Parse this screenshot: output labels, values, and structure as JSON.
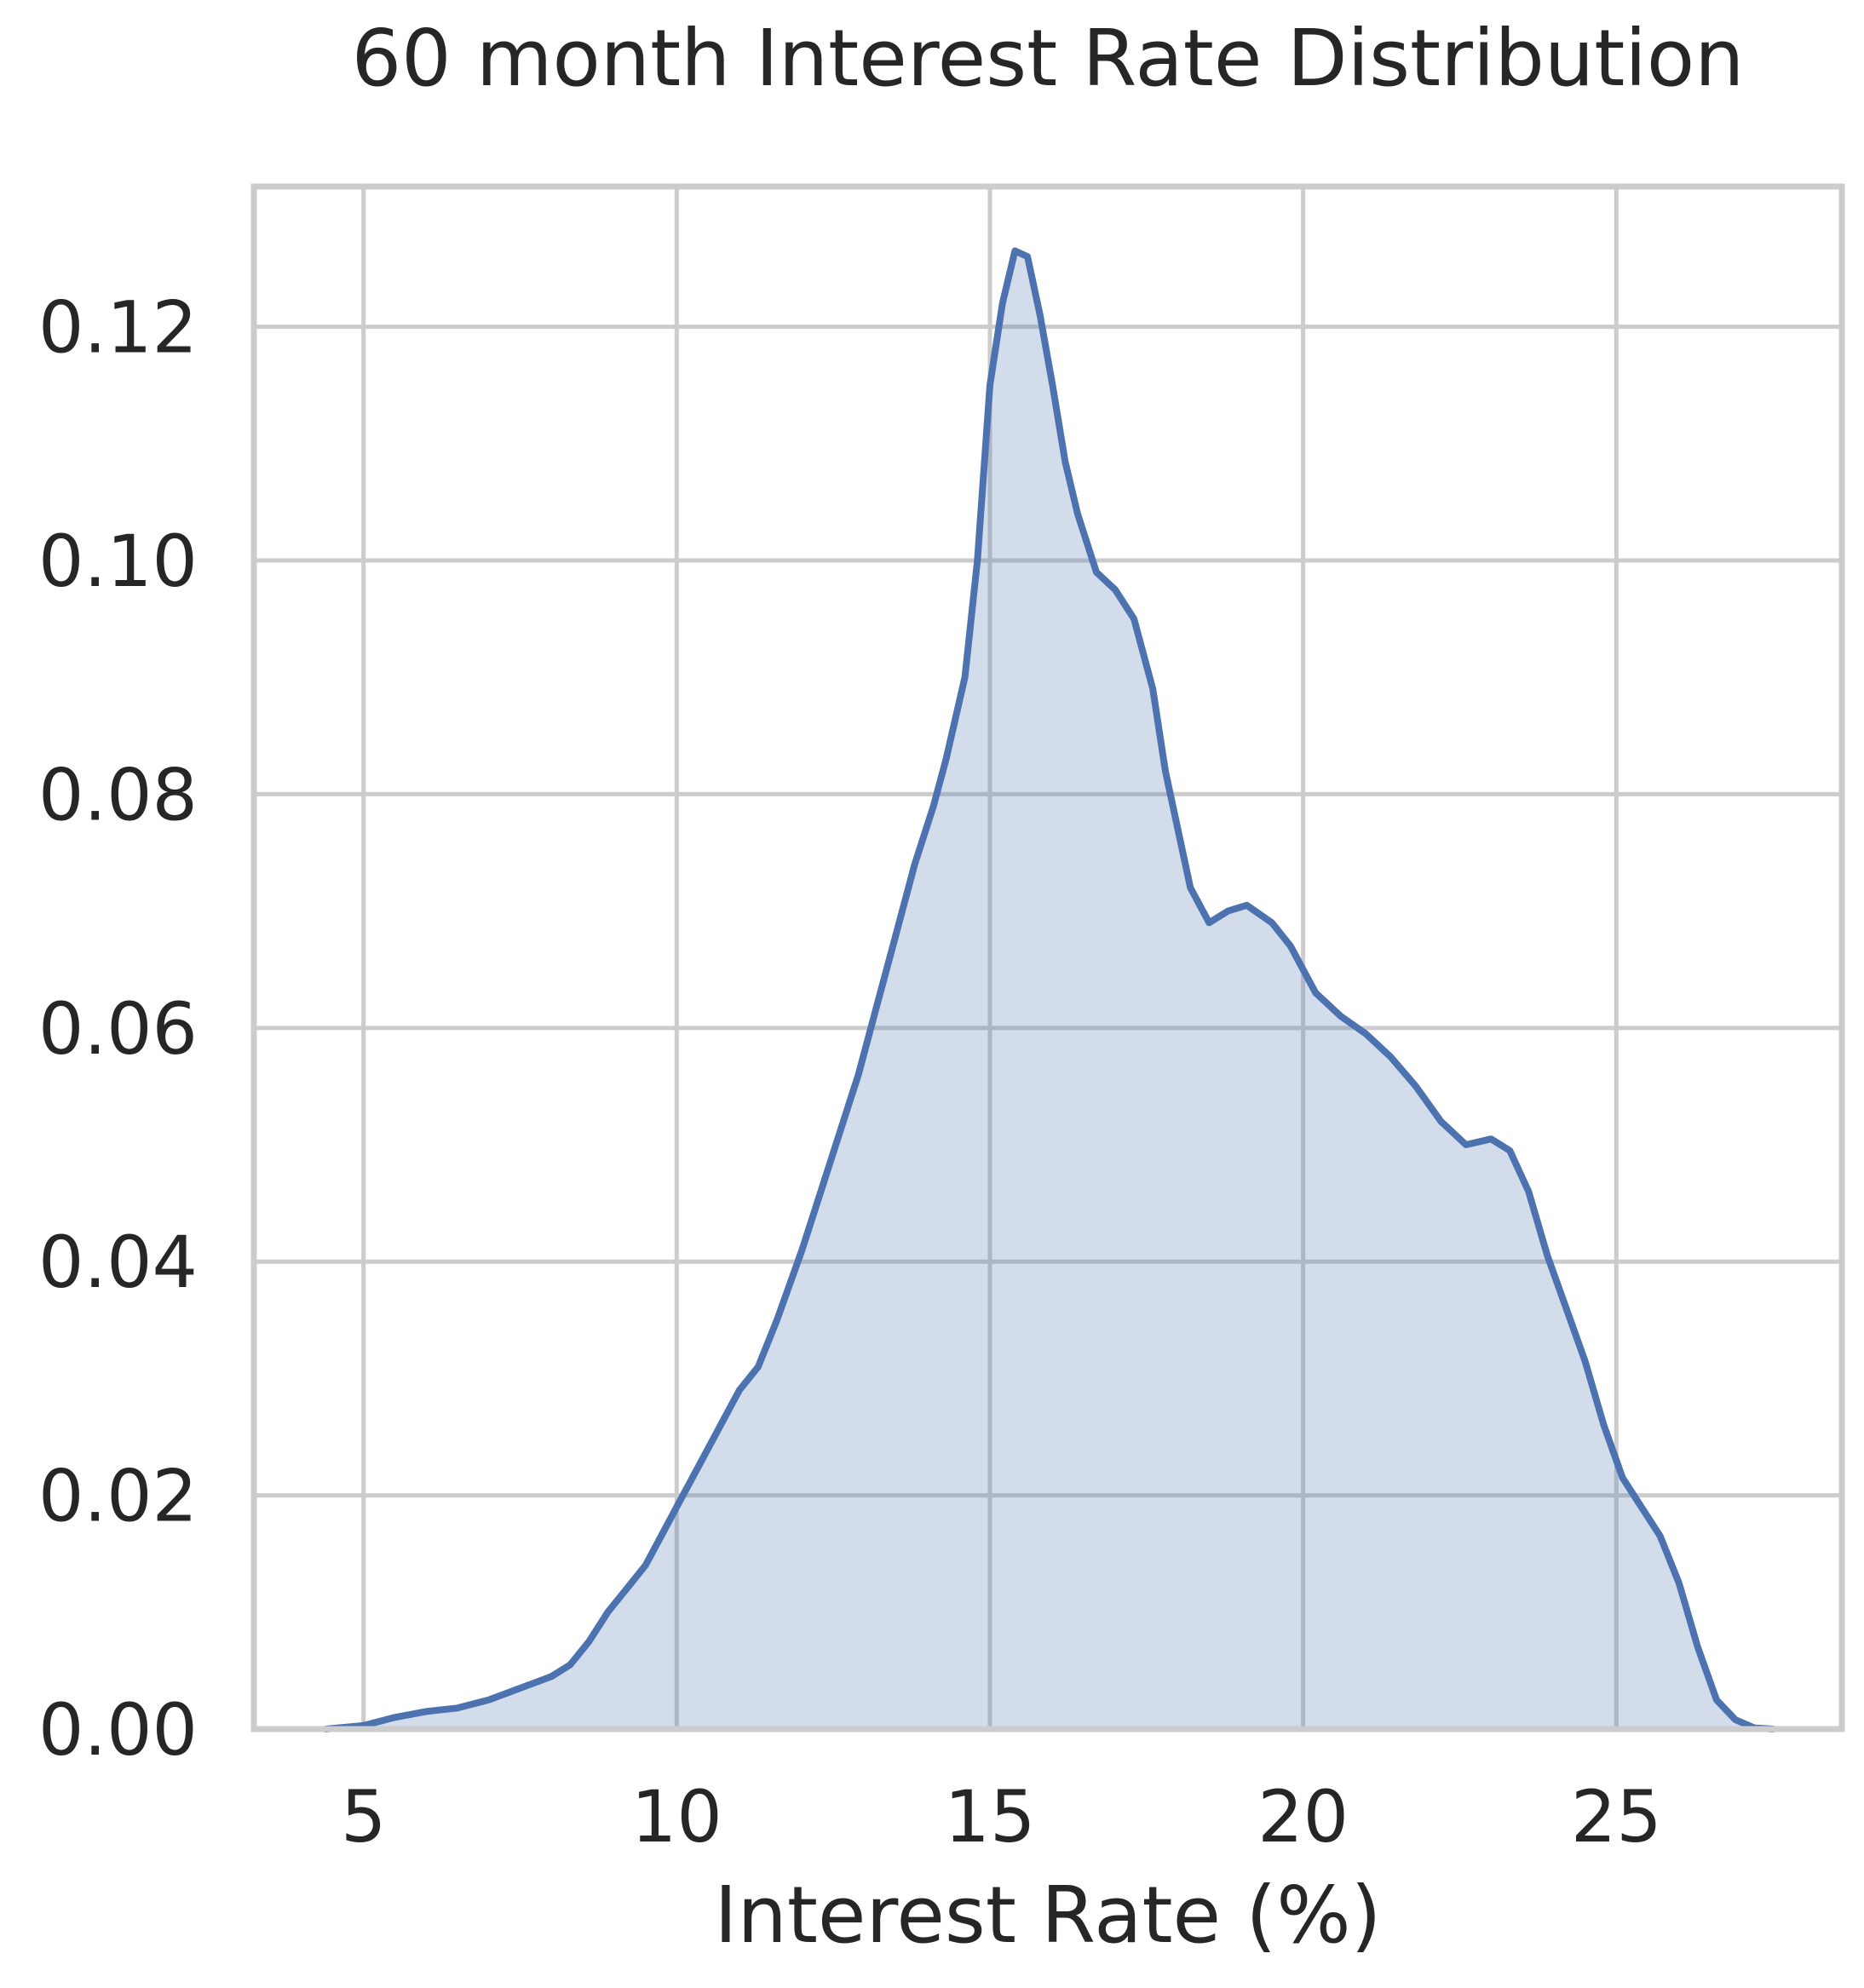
{
  "chart_data": {
    "type": "area",
    "title": "60 month Interest Rate Distribution",
    "xlabel": "Interest Rate (%)",
    "ylabel": "",
    "xlim": [
      3.25,
      28.6
    ],
    "ylim": [
      0,
      0.132
    ],
    "xticks": [
      5,
      10,
      15,
      20,
      25
    ],
    "yticks": [
      0.0,
      0.02,
      0.04,
      0.06,
      0.08,
      0.1,
      0.12
    ],
    "grid": true,
    "series": [
      {
        "color": "#4c72b0",
        "fill_color": "#4c72b0",
        "fill_opacity": 0.25,
        "x": [
          4.4,
          5.0,
          5.5,
          6.0,
          6.5,
          7.0,
          7.5,
          8.0,
          8.3,
          8.6,
          8.9,
          9.2,
          9.5,
          9.8,
          10.0,
          10.3,
          10.7,
          11.0,
          11.3,
          11.6,
          11.8,
          12.0,
          12.3,
          12.6,
          12.9,
          13.2,
          13.5,
          13.8,
          14.1,
          14.3,
          14.6,
          14.8,
          15.0,
          15.2,
          15.4,
          15.6,
          15.8,
          16.0,
          16.2,
          16.4,
          16.7,
          17.0,
          17.3,
          17.6,
          17.8,
          18.0,
          18.2,
          18.5,
          18.8,
          19.1,
          19.5,
          19.8,
          20.2,
          20.6,
          21.0,
          21.4,
          21.8,
          22.2,
          22.6,
          23.0,
          23.3,
          23.6,
          23.9,
          24.2,
          24.5,
          24.8,
          25.1,
          25.4,
          25.7,
          26.0,
          26.3,
          26.6,
          26.9,
          27.2,
          27.5
        ],
        "y": [
          0.0,
          0.0003,
          0.001,
          0.0015,
          0.0018,
          0.0025,
          0.0035,
          0.0045,
          0.0055,
          0.0075,
          0.01,
          0.012,
          0.014,
          0.017,
          0.019,
          0.022,
          0.026,
          0.029,
          0.031,
          0.035,
          0.038,
          0.041,
          0.046,
          0.051,
          0.056,
          0.062,
          0.068,
          0.074,
          0.079,
          0.083,
          0.09,
          0.1,
          0.115,
          0.122,
          0.1265,
          0.126,
          0.121,
          0.115,
          0.1085,
          0.104,
          0.099,
          0.0975,
          0.095,
          0.089,
          0.082,
          0.077,
          0.072,
          0.069,
          0.07,
          0.0705,
          0.069,
          0.067,
          0.063,
          0.061,
          0.0595,
          0.0575,
          0.055,
          0.052,
          0.05,
          0.0505,
          0.0495,
          0.046,
          0.0405,
          0.036,
          0.0315,
          0.026,
          0.0215,
          0.019,
          0.0165,
          0.0125,
          0.007,
          0.0025,
          0.0008,
          0.0001,
          0.0
        ]
      }
    ]
  }
}
